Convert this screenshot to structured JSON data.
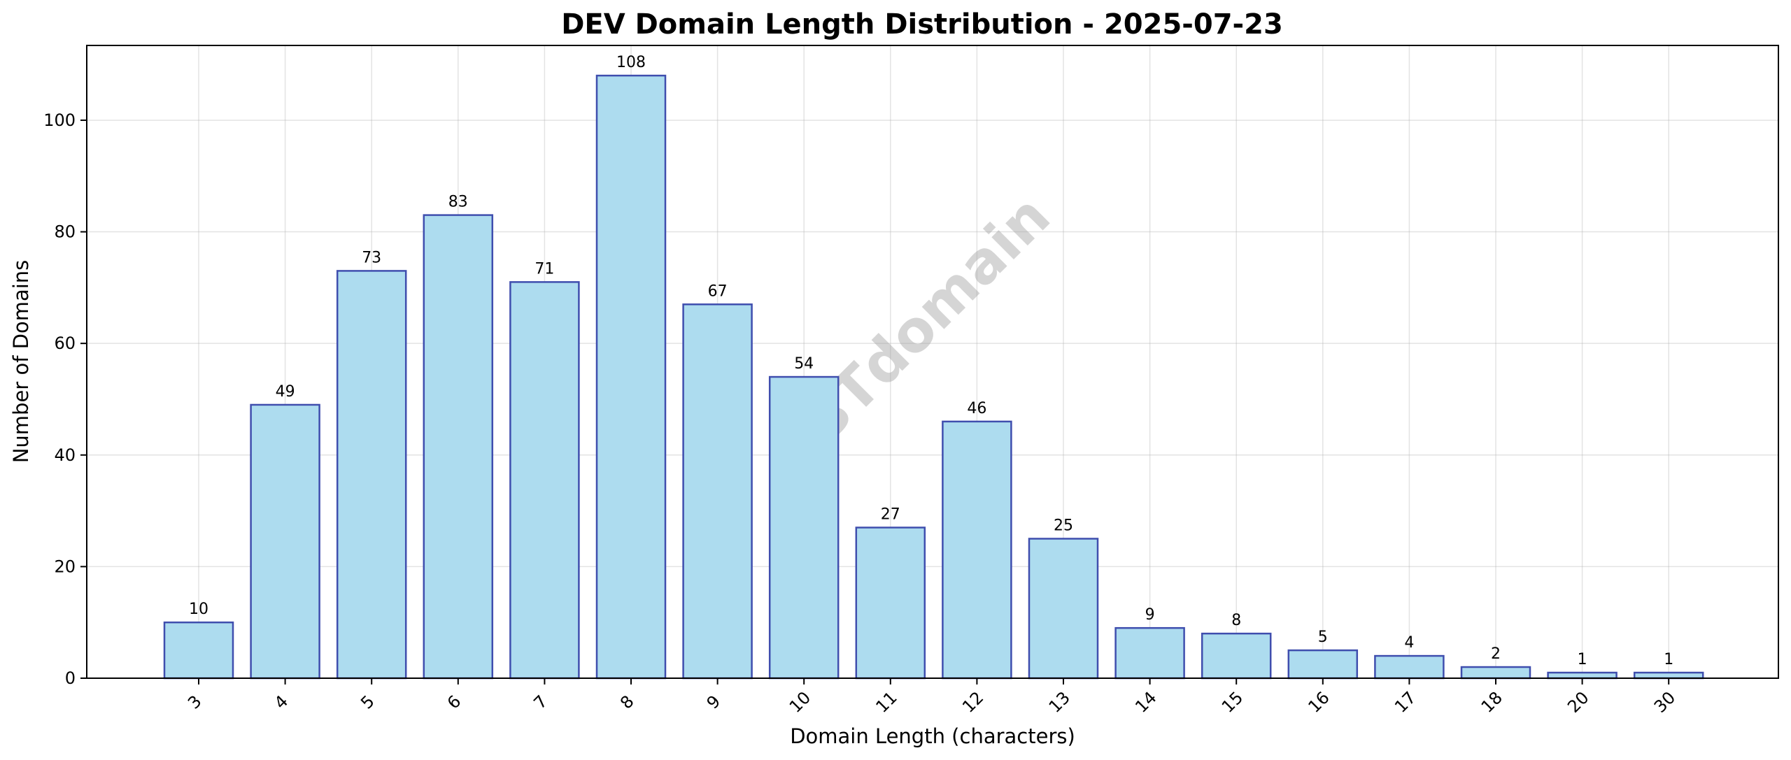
{
  "chart_data": {
    "type": "bar",
    "title": "DEV Domain Length Distribution - 2025-07-23",
    "xlabel": "Domain Length (characters)",
    "ylabel": "Number of Domains",
    "categories": [
      "3",
      "4",
      "5",
      "6",
      "7",
      "8",
      "9",
      "10",
      "11",
      "12",
      "13",
      "14",
      "15",
      "16",
      "17",
      "18",
      "20",
      "30"
    ],
    "values": [
      10,
      49,
      73,
      83,
      71,
      108,
      67,
      54,
      27,
      46,
      25,
      9,
      8,
      5,
      4,
      2,
      1,
      1
    ],
    "ylim": [
      0,
      113.4
    ],
    "yticks": [
      0,
      20,
      40,
      60,
      80,
      100
    ],
    "grid": true,
    "bar_color": "#ADDCEF",
    "bar_edge_color": "#3F4EAE",
    "watermark": "ABTdomain"
  }
}
